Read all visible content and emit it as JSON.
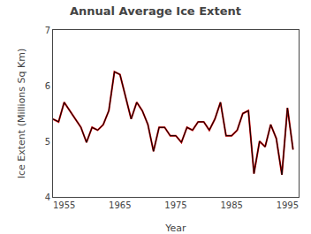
{
  "chart_data": {
    "type": "line",
    "title": "Annual Average Ice Extent",
    "xlabel": "Year",
    "ylabel": "Ice Extent (Millions Sq Km)",
    "x": [
      1953,
      1954,
      1955,
      1956,
      1957,
      1958,
      1959,
      1960,
      1961,
      1962,
      1963,
      1964,
      1965,
      1966,
      1967,
      1968,
      1969,
      1970,
      1971,
      1972,
      1973,
      1974,
      1975,
      1976,
      1977,
      1978,
      1979,
      1980,
      1981,
      1982,
      1983,
      1984,
      1985,
      1986,
      1987,
      1988,
      1989,
      1990,
      1991,
      1992,
      1993,
      1994,
      1995,
      1996
    ],
    "series": [
      {
        "color": "#cc0000",
        "values": [
          5.4,
          5.35,
          5.7,
          5.55,
          5.4,
          5.25,
          4.98,
          5.25,
          5.2,
          5.3,
          5.55,
          6.25,
          6.2,
          5.8,
          5.4,
          5.7,
          5.55,
          5.3,
          4.82,
          5.25,
          5.25,
          5.1,
          5.1,
          4.98,
          5.25,
          5.2,
          5.35,
          5.35,
          5.2,
          5.4,
          5.7,
          5.1,
          5.1,
          5.2,
          5.5,
          5.55,
          4.42,
          5.0,
          4.9,
          5.3,
          5.05,
          4.4,
          5.6,
          4.85
        ]
      },
      {
        "color": "#000000",
        "values": [
          5.4,
          5.35,
          5.7,
          5.55,
          5.4,
          5.25,
          4.98,
          5.25,
          5.2,
          5.3,
          5.55,
          6.25,
          6.2,
          5.8,
          5.4,
          5.7,
          5.55,
          5.3,
          4.82,
          5.25,
          5.25,
          5.1,
          5.1,
          4.98,
          5.25,
          5.2,
          5.35,
          5.35,
          5.2,
          5.4,
          5.7,
          5.1,
          5.1,
          5.2,
          5.5,
          5.55,
          4.42,
          5.0,
          4.9,
          5.3,
          5.05,
          4.4,
          5.6,
          4.85
        ]
      }
    ],
    "xlim": [
      1953,
      1997
    ],
    "ylim": [
      4,
      7
    ],
    "xticks": [
      1955,
      1965,
      1975,
      1985,
      1995
    ],
    "yticks": [
      4,
      5,
      6,
      7
    ],
    "grid": false
  }
}
